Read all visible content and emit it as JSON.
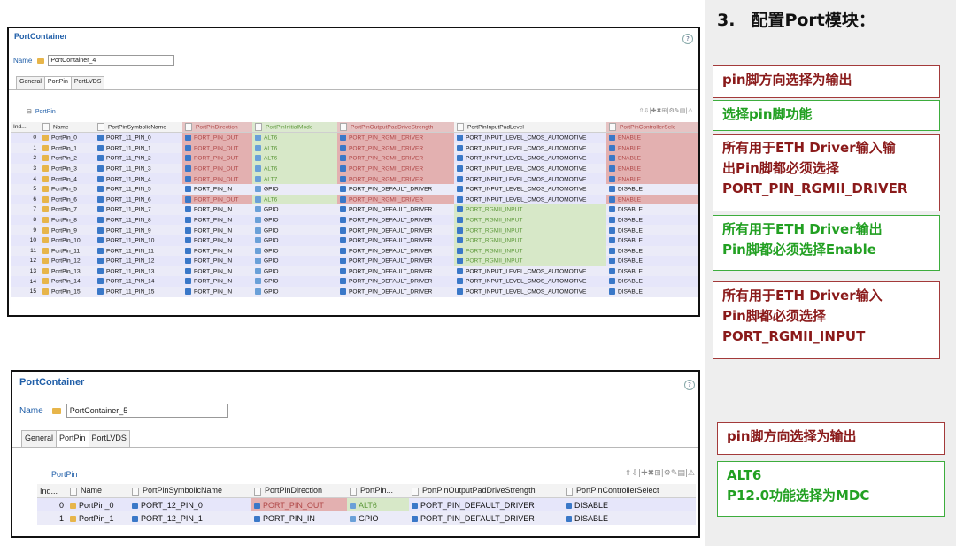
{
  "slide": {
    "title_num": "3.",
    "title_text": "配置Port模块："
  },
  "notes_top": [
    {
      "color": "red",
      "lines": [
        "pin脚方向选择为输出"
      ]
    },
    {
      "color": "green",
      "lines": [
        "选择pin脚功能"
      ]
    },
    {
      "color": "red",
      "lines": [
        "所有用于ETH Driver输入输",
        "出Pin脚都必须选择",
        "PORT_PIN_RGMII_DRIVER"
      ]
    },
    {
      "color": "green",
      "lines": [
        "所有用于ETH Driver输出",
        "Pin脚都必须选择Enable"
      ]
    },
    {
      "color": "red",
      "lines": [
        "所有用于ETH Driver输入",
        "Pin脚都必须选择",
        "PORT_RGMII_INPUT"
      ]
    }
  ],
  "notes_bottom": [
    {
      "color": "red",
      "lines": [
        "pin脚方向选择为输出"
      ]
    },
    {
      "color": "green",
      "lines": [
        "ALT6",
        "P12.0功能选择为MDC"
      ]
    }
  ],
  "panel1": {
    "title": "PortContainer",
    "name_label": "Name",
    "name_value": "PortContainer_4",
    "tabs": [
      "General",
      "PortPin",
      "PortLVDS"
    ],
    "active_tab": "PortPin",
    "section": "PortPin",
    "toolbar": "⇧⇩|✚✖⊞|⚙✎▤|⚠",
    "columns": [
      "Ind...",
      "Name",
      "PortPinSymbolicName",
      "PortPinDirection",
      "PortPinInitialMode",
      "PortPinOutputPadDriveStrength",
      "PortPinInputPadLevel",
      "PortPinControllerSele"
    ],
    "rows": [
      [
        "0",
        "PortPin_0",
        "PORT_11_PIN_0",
        "PORT_PIN_OUT",
        "ALT6",
        "PORT_PIN_RGMII_DRIVER",
        "PORT_INPUT_LEVEL_CMOS_AUTOMOTIVE",
        "ENABLE"
      ],
      [
        "1",
        "PortPin_1",
        "PORT_11_PIN_1",
        "PORT_PIN_OUT",
        "ALT6",
        "PORT_PIN_RGMII_DRIVER",
        "PORT_INPUT_LEVEL_CMOS_AUTOMOTIVE",
        "ENABLE"
      ],
      [
        "2",
        "PortPin_2",
        "PORT_11_PIN_2",
        "PORT_PIN_OUT",
        "ALT6",
        "PORT_PIN_RGMII_DRIVER",
        "PORT_INPUT_LEVEL_CMOS_AUTOMOTIVE",
        "ENABLE"
      ],
      [
        "3",
        "PortPin_3",
        "PORT_11_PIN_3",
        "PORT_PIN_OUT",
        "ALT6",
        "PORT_PIN_RGMII_DRIVER",
        "PORT_INPUT_LEVEL_CMOS_AUTOMOTIVE",
        "ENABLE"
      ],
      [
        "4",
        "PortPin_4",
        "PORT_11_PIN_4",
        "PORT_PIN_OUT",
        "ALT7",
        "PORT_PIN_RGMII_DRIVER",
        "PORT_INPUT_LEVEL_CMOS_AUTOMOTIVE",
        "ENABLE"
      ],
      [
        "5",
        "PortPin_5",
        "PORT_11_PIN_5",
        "PORT_PIN_IN",
        "GPIO",
        "PORT_PIN_DEFAULT_DRIVER",
        "PORT_INPUT_LEVEL_CMOS_AUTOMOTIVE",
        "DISABLE"
      ],
      [
        "6",
        "PortPin_6",
        "PORT_11_PIN_6",
        "PORT_PIN_OUT",
        "ALT6",
        "PORT_PIN_RGMII_DRIVER",
        "PORT_INPUT_LEVEL_CMOS_AUTOMOTIVE",
        "ENABLE"
      ],
      [
        "7",
        "PortPin_7",
        "PORT_11_PIN_7",
        "PORT_PIN_IN",
        "GPIO",
        "PORT_PIN_DEFAULT_DRIVER",
        "PORT_RGMII_INPUT",
        "DISABLE"
      ],
      [
        "8",
        "PortPin_8",
        "PORT_11_PIN_8",
        "PORT_PIN_IN",
        "GPIO",
        "PORT_PIN_DEFAULT_DRIVER",
        "PORT_RGMII_INPUT",
        "DISABLE"
      ],
      [
        "9",
        "PortPin_9",
        "PORT_11_PIN_9",
        "PORT_PIN_IN",
        "GPIO",
        "PORT_PIN_DEFAULT_DRIVER",
        "PORT_RGMII_INPUT",
        "DISABLE"
      ],
      [
        "10",
        "PortPin_10",
        "PORT_11_PIN_10",
        "PORT_PIN_IN",
        "GPIO",
        "PORT_PIN_DEFAULT_DRIVER",
        "PORT_RGMII_INPUT",
        "DISABLE"
      ],
      [
        "11",
        "PortPin_11",
        "PORT_11_PIN_11",
        "PORT_PIN_IN",
        "GPIO",
        "PORT_PIN_DEFAULT_DRIVER",
        "PORT_RGMII_INPUT",
        "DISABLE"
      ],
      [
        "12",
        "PortPin_12",
        "PORT_11_PIN_12",
        "PORT_PIN_IN",
        "GPIO",
        "PORT_PIN_DEFAULT_DRIVER",
        "PORT_RGMII_INPUT",
        "DISABLE"
      ],
      [
        "13",
        "PortPin_13",
        "PORT_11_PIN_13",
        "PORT_PIN_IN",
        "GPIO",
        "PORT_PIN_DEFAULT_DRIVER",
        "PORT_INPUT_LEVEL_CMOS_AUTOMOTIVE",
        "DISABLE"
      ],
      [
        "14",
        "PortPin_14",
        "PORT_11_PIN_14",
        "PORT_PIN_IN",
        "GPIO",
        "PORT_PIN_DEFAULT_DRIVER",
        "PORT_INPUT_LEVEL_CMOS_AUTOMOTIVE",
        "DISABLE"
      ],
      [
        "15",
        "PortPin_15",
        "PORT_11_PIN_15",
        "PORT_PIN_IN",
        "GPIO",
        "PORT_PIN_DEFAULT_DRIVER",
        "PORT_INPUT_LEVEL_CMOS_AUTOMOTIVE",
        "DISABLE"
      ]
    ]
  },
  "panel2": {
    "title": "PortContainer",
    "name_label": "Name",
    "name_value": "PortContainer_5",
    "tabs": [
      "General",
      "PortPin",
      "PortLVDS"
    ],
    "active_tab": "PortPin",
    "section": "PortPin",
    "toolbar": "⇧⇩|✚✖⊞|⚙✎▤|⚠",
    "columns": [
      "Ind...",
      "Name",
      "PortPinSymbolicName",
      "PortPinDirection",
      "PortPin...",
      "PortPinOutputPadDriveStrength",
      "PortPinControllerSelect"
    ],
    "rows": [
      [
        "0",
        "PortPin_0",
        "PORT_12_PIN_0",
        "PORT_PIN_OUT",
        "ALT6",
        "PORT_PIN_DEFAULT_DRIVER",
        "DISABLE"
      ],
      [
        "1",
        "PortPin_1",
        "PORT_12_PIN_1",
        "PORT_PIN_IN",
        "GPIO",
        "PORT_PIN_DEFAULT_DRIVER",
        "DISABLE"
      ]
    ]
  },
  "colors": {
    "title_blue": "#1f5ea8",
    "note_red": "#8a1a1a",
    "note_green": "#22a022",
    "cell_red": "#e3b0b0",
    "cell_green": "#d7e8c8",
    "row_lavender": "#e6e6fa"
  }
}
